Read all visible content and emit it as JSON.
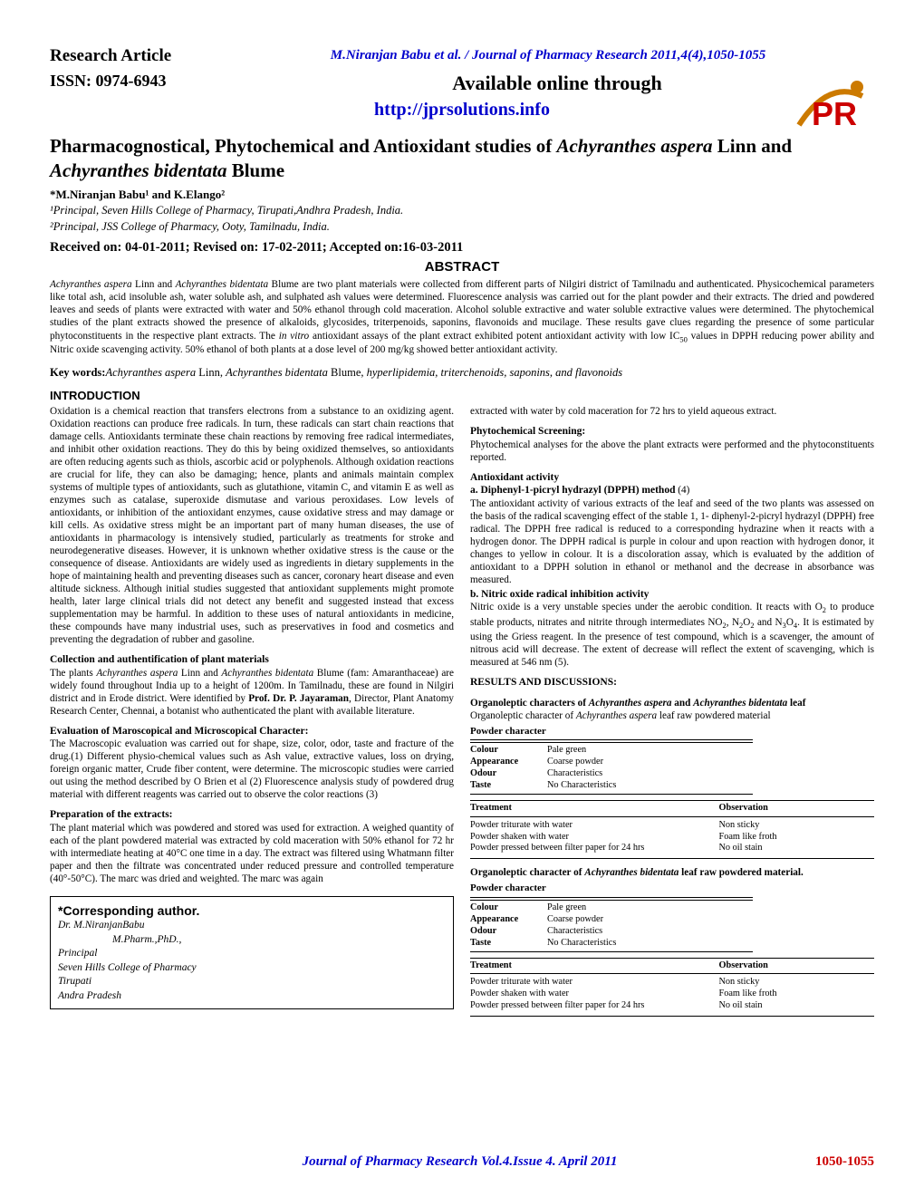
{
  "header": {
    "research_article": "Research  Article",
    "citation": "M.Niranjan Babu et al. / Journal of Pharmacy Research 2011,4(4),1050-1055",
    "issn": "ISSN: 0974-6943",
    "available": "Available online through",
    "url": "http://jprsolutions.info"
  },
  "logo": {
    "text": "PR",
    "swoosh_color": "#cc7a00",
    "text_color": "#cc0000"
  },
  "title": {
    "pre": "Pharmacognostical, Phytochemical and Antioxidant studies of ",
    "sp1": "Achyranthes aspera",
    "mid": " Linn and ",
    "sp2": "Achyranthes bidentata",
    "post": " Blume"
  },
  "authors": "*M.Niranjan Babu¹  and K.Elango²",
  "affil1": "¹Principal, Seven Hills College of Pharmacy, Tirupati,Andhra Pradesh, India.",
  "affil2": "²Principal, JSS College of Pharmacy, Ooty, Tamilnadu, India.",
  "dates": "Received on: 04-01-2011; Revised  on: 17-02-2011; Accepted on:16-03-2011",
  "abstract_hd": "ABSTRACT",
  "abstract": {
    "p1a": "Achyranthes aspera",
    "p1b": " Linn and ",
    "p1c": "Achyranthes bidentata",
    "p1d": " Blume are two plant materials were collected from different parts of Nilgiri district of Tamilnadu and authenticated. Physicochemical parameters like total ash, acid insoluble ash, water soluble ash, and sulphated ash values were determined. Fluorescence analysis was carried out for the plant powder and their extracts.  The dried and powdered leaves and seeds of plants were extracted with water and 50% ethanol through cold maceration. Alcohol soluble extractive and water soluble extractive values were determined. The phytochemical studies of the plant extracts showed the presence of alkaloids, glycosides, triterpenoids, saponins, flavonoids and mucilage. These results gave clues regarding the presence of some particular phytoconstituents in the respective plant extracts. The ",
    "p1e": "in vitro",
    "p1f": " antioxidant assays of the plant extract exhibited potent antioxidant activity with low IC",
    "p1g": " values in DPPH reducing power ability and Nitric oxide scavenging activity. 50% ethanol of both plants at a dose level of 200 mg/kg showed better antioxidant activity."
  },
  "keywords": {
    "label": "Key words:",
    "s1": "Achyranthes aspera",
    "t1": " Linn, ",
    "s2": "Achyranthes bidentata",
    "t2": " Blume",
    "rest": ", hyperlipidemia, triterchenoids, saponins, and flavonoids"
  },
  "introduction_hd": "INTRODUCTION",
  "left": {
    "p1": "Oxidation is a chemical reaction that transfers electrons from a substance to an oxidizing agent. Oxidation reactions can produce free radicals. In turn, these radicals can start chain reactions that damage cells. Antioxidants terminate these chain reactions by removing free radical intermediates, and inhibit other oxidation reactions. They do this by being oxidized themselves, so antioxidants are often reducing agents such as thiols, ascorbic acid or polyphenols. Although oxidation reactions are crucial for life, they can also be damaging; hence, plants and animals maintain complex systems of multiple types of antioxidants, such as glutathione, vitamin C, and vitamin E as well as enzymes such as catalase, superoxide dismutase and various peroxidases. Low levels of antioxidants, or inhibition of the antioxidant enzymes, cause oxidative stress and may damage or kill cells.  As oxidative stress might be an important part of many human diseases, the use of antioxidants in pharmacology is intensively studied, particularly as treatments for stroke and neurodegenerative diseases. However, it is unknown whether oxidative stress is the cause or the consequence of disease.  Antioxidants are widely used as ingredients in dietary supplements in the hope of maintaining health and preventing diseases such as cancer, coronary heart disease and even altitude sickness. Although initial studies suggested that antioxidant supplements might promote health, later large clinical trials did not detect any benefit and suggested instead that excess supplementation may be harmful. In addition to these uses of natural antioxidants in medicine, these compounds have many industrial uses, such as preservatives in food and cosmetics and preventing the degradation of rubber and gasoline.",
    "h2": "Collection and authentification of plant materials",
    "p2a": "The plants ",
    "p2s1": "Achyranthes aspera",
    "p2b": " Linn and ",
    "p2s2": "Achyranthes bidentata",
    "p2c": " Blume (fam: Amaranthaceae) are widely found throughout India up to a height of 1200m. In Tamilnadu, these are found in Nilgiri district and in Erode district. Were identified by ",
    "p2d": "Prof. Dr. P. Jayaraman",
    "p2e": ", Director, Plant Anatomy Research Center, Chennai, a botanist who authenticated the plant with available literature.",
    "h3": "Evaluation of Maroscopical and Microscopical Character:",
    "p3": "The Macroscopic evaluation was carried out for shape, size, color, odor, taste and fracture of the drug.(1) Different physio-chemical values such as Ash value, extractive values, loss on drying, foreign organic matter, Crude fiber content, were determine. The microscopic studies were carried out using the method described by O Brien et al (2) Fluorescence analysis study of powdered drug material with different reagents was carried out to observe the color reactions (3)",
    "h4": "Preparation of the extracts:",
    "p4": "The plant material which was powdered and stored was used for extraction. A weighed quantity of each of the plant powdered material was extracted by cold maceration with 50% ethanol for 72 hr with intermediate heating at 40°C one time in a day. The extract was filtered using Whatmann filter paper and then the filtrate was concentrated under reduced pressure and controlled temperature (40°-50°C). The marc was dried and weighted. The marc was again"
  },
  "corresponding": {
    "hdr": "*Corresponding author.",
    "l1": "Dr.  M.NiranjanBabu",
    "l2": "M.Pharm.,PhD.,",
    "l3": "Principal",
    "l4": "Seven Hills College of Pharmacy",
    "l5": "Tirupati",
    "l6": "Andra Pradesh"
  },
  "right": {
    "p1": "extracted with water by cold maceration for 72 hrs to yield aqueous extract.",
    "h2": "Phytochemical Screening:",
    "p2": "Phytochemical analyses for the above the plant extracts were performed and the phytoconstituents reported.",
    "h3": "Antioxidant activity",
    "h3a": "a. Diphenyl-1-picryl hydrazyl (DPPH) method",
    "h3a_ref": " (4)",
    "p3": "The antioxidant activity of various extracts of the leaf and seed of the two plants was assessed on the basis of the radical scavenging effect of the stable 1, 1- diphenyl-2-picryl hydrazyl (DPPH) free radical. The DPPH free radical is reduced to a corresponding hydrazine when it reacts with a hydrogen donor. The DPPH radical is purple in colour and upon reaction with hydrogen donor, it changes to yellow in colour. It is a discoloration assay, which is evaluated by the addition of antioxidant to a DPPH solution in ethanol or methanol and the decrease in absorbance was measured.",
    "h4": "b. Nitric oxide radical inhibition activity",
    "p4a": "Nitric oxide is a very unstable species under the aerobic condition. It reacts with O",
    "p4b": " to produce stable products, nitrates and nitrite through intermediates NO",
    "p4c": ", N",
    "p4d": "O",
    "p4e": " and N",
    "p4f": "O",
    "p4g": ". It is estimated by using the Griess reagent. In the presence of test compound, which is a scavenger, the amount of nitrous acid will decrease. The extent of decrease will reflect the extent of scavenging, which is measured at 546 nm (5).",
    "h5": "RESULTS AND DISCUSSIONS:",
    "t1_a": "Organoleptic characters of ",
    "t1_s1": "Achyranthes aspera",
    "t1_b": " and ",
    "t1_s2": "Achyranthes bidentata",
    "t1_c": " leaf",
    "t1_sub_a": "Organoleptic character of  ",
    "t1_sub_s": "Achyranthes aspera",
    "t1_sub_b": "  leaf raw powdered material",
    "tbl_powder": "Powder character",
    "char": {
      "Colour": "Pale green",
      "Appearance": "Coarse powder",
      "Odour": "Characteristics",
      "Taste": "No Characteristics"
    },
    "treat_hd1": "Treatment",
    "treat_hd2": "Observation",
    "treat_rows": [
      [
        "Powder triturate with water",
        "Non sticky"
      ],
      [
        "Powder shaken with water",
        "Foam like froth"
      ],
      [
        "Powder pressed between filter paper for 24 hrs",
        "No oil stain"
      ]
    ],
    "t2_a": "Organoleptic character of  ",
    "t2_s": "Achyranthes bidentata",
    "t2_b": " leaf raw powdered material."
  },
  "footer": {
    "journal": "Journal of Pharmacy Research Vol.4.Issue 4. April 2011",
    "pages": "1050-1055"
  },
  "colors": {
    "link_blue": "#0000cc",
    "page_red": "#cc0000"
  }
}
